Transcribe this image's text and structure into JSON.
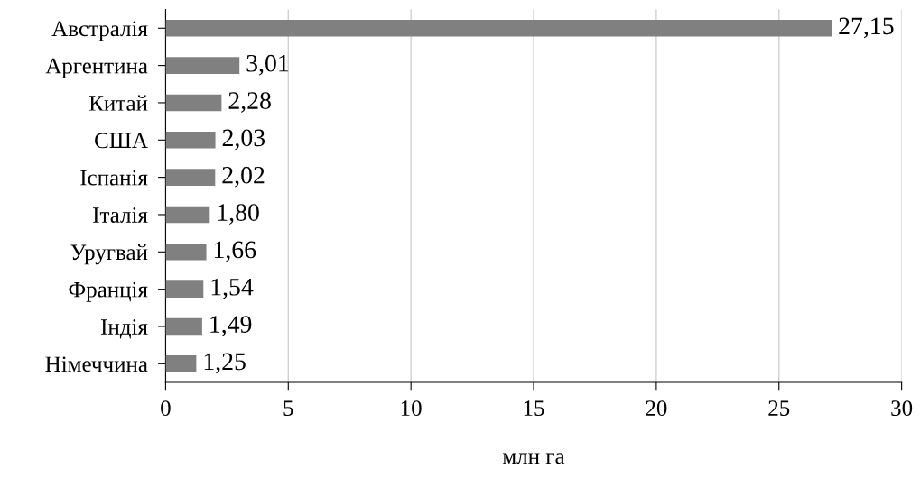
{
  "chart_data": {
    "type": "bar",
    "orientation": "horizontal",
    "categories": [
      "Австралія",
      "Аргентина",
      "Китай",
      "США",
      "Іспанія",
      "Італія",
      "Уругвай",
      "Франція",
      "Індія",
      "Німеччина"
    ],
    "values": [
      27.15,
      3.01,
      2.28,
      2.03,
      2.02,
      1.8,
      1.66,
      1.54,
      1.49,
      1.25
    ],
    "value_labels": [
      "27,15",
      "3,01",
      "2,28",
      "2,03",
      "2,02",
      "1,80",
      "1,66",
      "1,54",
      "1,49",
      "1,25"
    ],
    "color": "#808080",
    "xlim": [
      0,
      30
    ],
    "xticks": [
      0,
      5,
      10,
      15,
      20,
      25,
      30
    ],
    "xlabel": "млн га",
    "grid": "x"
  }
}
